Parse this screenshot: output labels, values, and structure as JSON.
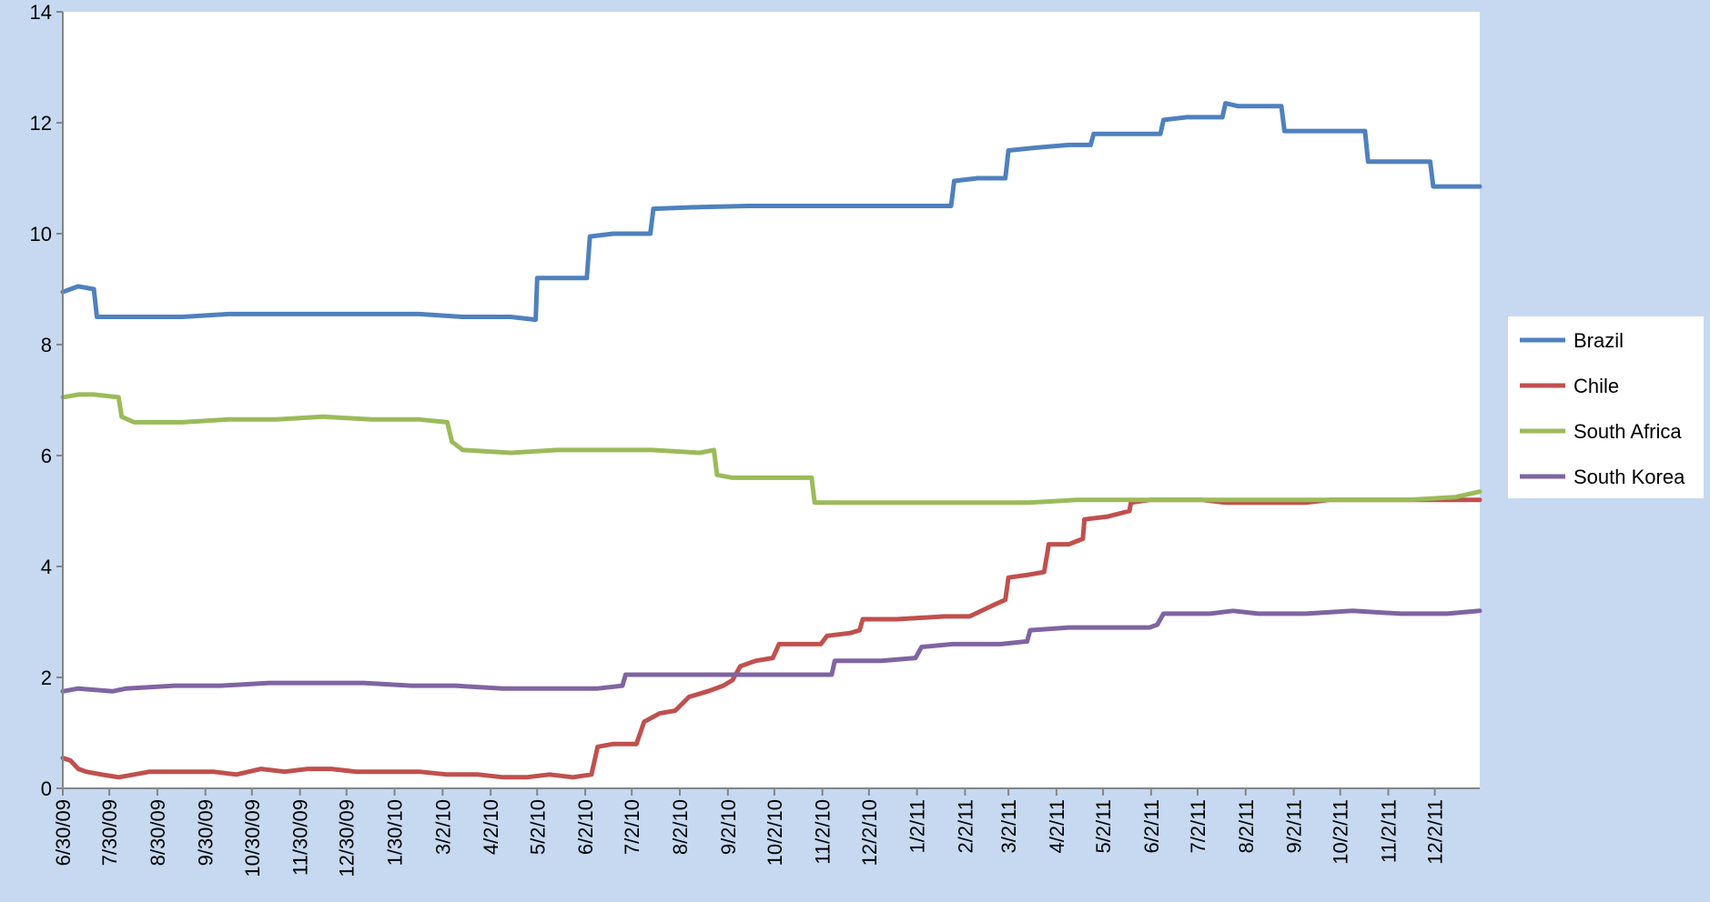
{
  "chart_data": {
    "type": "line",
    "title": "",
    "xlabel": "",
    "ylabel": "",
    "ylim": [
      0,
      14
    ],
    "yticks": [
      0,
      2,
      4,
      6,
      8,
      10,
      12,
      14
    ],
    "xlim": [
      "2009-06-30",
      "2011-12-31"
    ],
    "xtick_labels": [
      "6/30/09",
      "7/30/09",
      "8/30/09",
      "9/30/09",
      "10/30/09",
      "11/30/09",
      "12/30/09",
      "1/30/10",
      "3/2/10",
      "4/2/10",
      "5/2/10",
      "6/2/10",
      "7/2/10",
      "8/2/10",
      "9/2/10",
      "10/2/10",
      "11/2/10",
      "12/2/10",
      "1/2/11",
      "2/2/11",
      "3/2/11",
      "4/2/11",
      "5/2/11",
      "6/2/11",
      "7/2/11",
      "8/2/11",
      "9/2/11",
      "10/2/11",
      "11/2/11",
      "12/2/11"
    ],
    "xtick_dates": [
      "2009-06-30",
      "2009-07-30",
      "2009-08-30",
      "2009-09-30",
      "2009-10-30",
      "2009-11-30",
      "2009-12-30",
      "2010-01-30",
      "2010-03-02",
      "2010-04-02",
      "2010-05-02",
      "2010-06-02",
      "2010-07-02",
      "2010-08-02",
      "2010-09-02",
      "2010-10-02",
      "2010-11-02",
      "2010-12-02",
      "2011-01-02",
      "2011-02-02",
      "2011-03-02",
      "2011-04-02",
      "2011-05-02",
      "2011-06-02",
      "2011-07-02",
      "2011-08-02",
      "2011-09-02",
      "2011-10-02",
      "2011-11-02",
      "2011-12-02"
    ],
    "grid": false,
    "legend_position": "right",
    "series": [
      {
        "name": "Brazil",
        "color": "#4f81bd",
        "points": [
          [
            "2009-06-30",
            8.95
          ],
          [
            "2009-07-05",
            9.0
          ],
          [
            "2009-07-10",
            9.05
          ],
          [
            "2009-07-20",
            9.0
          ],
          [
            "2009-07-22",
            8.5
          ],
          [
            "2009-08-15",
            8.5
          ],
          [
            "2009-09-15",
            8.5
          ],
          [
            "2009-10-15",
            8.55
          ],
          [
            "2009-11-15",
            8.55
          ],
          [
            "2009-12-15",
            8.55
          ],
          [
            "2010-01-15",
            8.55
          ],
          [
            "2010-02-15",
            8.55
          ],
          [
            "2010-03-15",
            8.5
          ],
          [
            "2010-04-15",
            8.5
          ],
          [
            "2010-05-01",
            8.45
          ],
          [
            "2010-05-02",
            9.2
          ],
          [
            "2010-05-20",
            9.2
          ],
          [
            "2010-06-03",
            9.2
          ],
          [
            "2010-06-05",
            9.95
          ],
          [
            "2010-06-20",
            10.0
          ],
          [
            "2010-07-14",
            10.0
          ],
          [
            "2010-07-16",
            10.45
          ],
          [
            "2010-08-15",
            10.48
          ],
          [
            "2010-09-15",
            10.5
          ],
          [
            "2010-10-15",
            10.5
          ],
          [
            "2010-11-15",
            10.5
          ],
          [
            "2010-12-15",
            10.5
          ],
          [
            "2011-01-15",
            10.5
          ],
          [
            "2011-01-24",
            10.5
          ],
          [
            "2011-01-26",
            10.95
          ],
          [
            "2011-02-10",
            11.0
          ],
          [
            "2011-02-28",
            11.0
          ],
          [
            "2011-03-02",
            11.5
          ],
          [
            "2011-03-20",
            11.55
          ],
          [
            "2011-04-10",
            11.6
          ],
          [
            "2011-04-24",
            11.6
          ],
          [
            "2011-04-26",
            11.8
          ],
          [
            "2011-05-20",
            11.8
          ],
          [
            "2011-06-08",
            11.8
          ],
          [
            "2011-06-10",
            12.05
          ],
          [
            "2011-06-25",
            12.1
          ],
          [
            "2011-07-18",
            12.1
          ],
          [
            "2011-07-20",
            12.35
          ],
          [
            "2011-07-28",
            12.3
          ],
          [
            "2011-08-05",
            12.3
          ],
          [
            "2011-08-25",
            12.3
          ],
          [
            "2011-08-27",
            11.85
          ],
          [
            "2011-09-15",
            11.85
          ],
          [
            "2011-10-18",
            11.85
          ],
          [
            "2011-10-20",
            11.3
          ],
          [
            "2011-11-10",
            11.3
          ],
          [
            "2011-11-29",
            11.3
          ],
          [
            "2011-12-01",
            10.85
          ],
          [
            "2011-12-15",
            10.85
          ],
          [
            "2011-12-31",
            10.85
          ]
        ]
      },
      {
        "name": "Chile",
        "color": "#c0504d",
        "points": [
          [
            "2009-06-30",
            0.55
          ],
          [
            "2009-07-05",
            0.5
          ],
          [
            "2009-07-10",
            0.35
          ],
          [
            "2009-07-15",
            0.3
          ],
          [
            "2009-07-25",
            0.25
          ],
          [
            "2009-08-05",
            0.2
          ],
          [
            "2009-08-15",
            0.25
          ],
          [
            "2009-08-25",
            0.3
          ],
          [
            "2009-09-15",
            0.3
          ],
          [
            "2009-10-05",
            0.3
          ],
          [
            "2009-10-20",
            0.25
          ],
          [
            "2009-11-05",
            0.35
          ],
          [
            "2009-11-20",
            0.3
          ],
          [
            "2009-12-05",
            0.35
          ],
          [
            "2009-12-20",
            0.35
          ],
          [
            "2010-01-05",
            0.3
          ],
          [
            "2010-01-25",
            0.3
          ],
          [
            "2010-02-15",
            0.3
          ],
          [
            "2010-03-05",
            0.25
          ],
          [
            "2010-03-25",
            0.25
          ],
          [
            "2010-04-10",
            0.2
          ],
          [
            "2010-04-25",
            0.2
          ],
          [
            "2010-05-10",
            0.25
          ],
          [
            "2010-05-25",
            0.2
          ],
          [
            "2010-06-06",
            0.25
          ],
          [
            "2010-06-10",
            0.75
          ],
          [
            "2010-06-20",
            0.8
          ],
          [
            "2010-07-05",
            0.8
          ],
          [
            "2010-07-10",
            1.2
          ],
          [
            "2010-07-20",
            1.35
          ],
          [
            "2010-07-30",
            1.4
          ],
          [
            "2010-08-08",
            1.65
          ],
          [
            "2010-08-20",
            1.75
          ],
          [
            "2010-08-30",
            1.85
          ],
          [
            "2010-09-05",
            1.95
          ],
          [
            "2010-09-10",
            2.2
          ],
          [
            "2010-09-20",
            2.3
          ],
          [
            "2010-10-01",
            2.35
          ],
          [
            "2010-10-05",
            2.6
          ],
          [
            "2010-10-20",
            2.6
          ],
          [
            "2010-11-01",
            2.6
          ],
          [
            "2010-11-05",
            2.75
          ],
          [
            "2010-11-20",
            2.8
          ],
          [
            "2010-11-26",
            2.85
          ],
          [
            "2010-11-28",
            3.05
          ],
          [
            "2010-12-20",
            3.05
          ],
          [
            "2011-01-20",
            3.1
          ],
          [
            "2011-02-05",
            3.1
          ],
          [
            "2011-02-20",
            3.3
          ],
          [
            "2011-02-28",
            3.4
          ],
          [
            "2011-03-02",
            3.8
          ],
          [
            "2011-03-15",
            3.85
          ],
          [
            "2011-03-25",
            3.9
          ],
          [
            "2011-03-28",
            4.4
          ],
          [
            "2011-04-10",
            4.4
          ],
          [
            "2011-04-19",
            4.5
          ],
          [
            "2011-04-20",
            4.85
          ],
          [
            "2011-05-05",
            4.9
          ],
          [
            "2011-05-19",
            5.0
          ],
          [
            "2011-05-20",
            5.15
          ],
          [
            "2011-06-01",
            5.2
          ],
          [
            "2011-06-20",
            5.2
          ],
          [
            "2011-07-05",
            5.2
          ],
          [
            "2011-07-20",
            5.15
          ],
          [
            "2011-08-05",
            5.15
          ],
          [
            "2011-08-20",
            5.15
          ],
          [
            "2011-09-10",
            5.15
          ],
          [
            "2011-09-25",
            5.2
          ],
          [
            "2011-10-15",
            5.2
          ],
          [
            "2011-11-10",
            5.2
          ],
          [
            "2011-12-01",
            5.2
          ],
          [
            "2011-12-31",
            5.2
          ]
        ]
      },
      {
        "name": "South Africa",
        "color": "#9bbb59",
        "points": [
          [
            "2009-06-30",
            7.05
          ],
          [
            "2009-07-10",
            7.1
          ],
          [
            "2009-07-20",
            7.1
          ],
          [
            "2009-08-05",
            7.05
          ],
          [
            "2009-08-07",
            6.7
          ],
          [
            "2009-08-15",
            6.6
          ],
          [
            "2009-09-15",
            6.6
          ],
          [
            "2009-10-15",
            6.65
          ],
          [
            "2009-11-15",
            6.65
          ],
          [
            "2009-12-15",
            6.7
          ],
          [
            "2010-01-15",
            6.65
          ],
          [
            "2010-02-15",
            6.65
          ],
          [
            "2010-03-05",
            6.6
          ],
          [
            "2010-03-08",
            6.25
          ],
          [
            "2010-03-15",
            6.1
          ],
          [
            "2010-04-15",
            6.05
          ],
          [
            "2010-05-15",
            6.1
          ],
          [
            "2010-06-15",
            6.1
          ],
          [
            "2010-07-15",
            6.1
          ],
          [
            "2010-08-15",
            6.05
          ],
          [
            "2010-08-24",
            6.1
          ],
          [
            "2010-08-26",
            5.65
          ],
          [
            "2010-09-05",
            5.6
          ],
          [
            "2010-10-05",
            5.6
          ],
          [
            "2010-10-26",
            5.6
          ],
          [
            "2010-10-28",
            5.15
          ],
          [
            "2010-11-15",
            5.15
          ],
          [
            "2010-12-15",
            5.15
          ],
          [
            "2011-01-15",
            5.15
          ],
          [
            "2011-02-15",
            5.15
          ],
          [
            "2011-03-15",
            5.15
          ],
          [
            "2011-04-15",
            5.2
          ],
          [
            "2011-05-15",
            5.2
          ],
          [
            "2011-06-15",
            5.2
          ],
          [
            "2011-07-15",
            5.2
          ],
          [
            "2011-08-15",
            5.2
          ],
          [
            "2011-09-15",
            5.2
          ],
          [
            "2011-10-15",
            5.2
          ],
          [
            "2011-11-15",
            5.2
          ],
          [
            "2011-12-15",
            5.25
          ],
          [
            "2011-12-31",
            5.35
          ]
        ]
      },
      {
        "name": "South Korea",
        "color": "#8064a2",
        "points": [
          [
            "2009-06-30",
            1.75
          ],
          [
            "2009-07-10",
            1.8
          ],
          [
            "2009-08-01",
            1.75
          ],
          [
            "2009-08-10",
            1.8
          ],
          [
            "2009-09-10",
            1.85
          ],
          [
            "2009-10-10",
            1.85
          ],
          [
            "2009-11-10",
            1.9
          ],
          [
            "2009-12-10",
            1.9
          ],
          [
            "2010-01-10",
            1.9
          ],
          [
            "2010-02-10",
            1.85
          ],
          [
            "2010-03-10",
            1.85
          ],
          [
            "2010-04-10",
            1.8
          ],
          [
            "2010-05-10",
            1.8
          ],
          [
            "2010-06-10",
            1.8
          ],
          [
            "2010-06-26",
            1.85
          ],
          [
            "2010-06-28",
            2.05
          ],
          [
            "2010-07-20",
            2.05
          ],
          [
            "2010-08-20",
            2.05
          ],
          [
            "2010-09-20",
            2.05
          ],
          [
            "2010-10-20",
            2.05
          ],
          [
            "2010-11-08",
            2.05
          ],
          [
            "2010-11-10",
            2.3
          ],
          [
            "2010-12-10",
            2.3
          ],
          [
            "2011-01-01",
            2.35
          ],
          [
            "2011-01-05",
            2.55
          ],
          [
            "2011-01-25",
            2.6
          ],
          [
            "2011-02-25",
            2.6
          ],
          [
            "2011-03-14",
            2.65
          ],
          [
            "2011-03-16",
            2.85
          ],
          [
            "2011-04-10",
            2.9
          ],
          [
            "2011-05-10",
            2.9
          ],
          [
            "2011-06-01",
            2.9
          ],
          [
            "2011-06-06",
            2.95
          ],
          [
            "2011-06-10",
            3.15
          ],
          [
            "2011-07-10",
            3.15
          ],
          [
            "2011-07-25",
            3.2
          ],
          [
            "2011-08-10",
            3.15
          ],
          [
            "2011-09-10",
            3.15
          ],
          [
            "2011-10-10",
            3.2
          ],
          [
            "2011-11-10",
            3.15
          ],
          [
            "2011-12-10",
            3.15
          ],
          [
            "2011-12-31",
            3.2
          ]
        ]
      }
    ]
  }
}
